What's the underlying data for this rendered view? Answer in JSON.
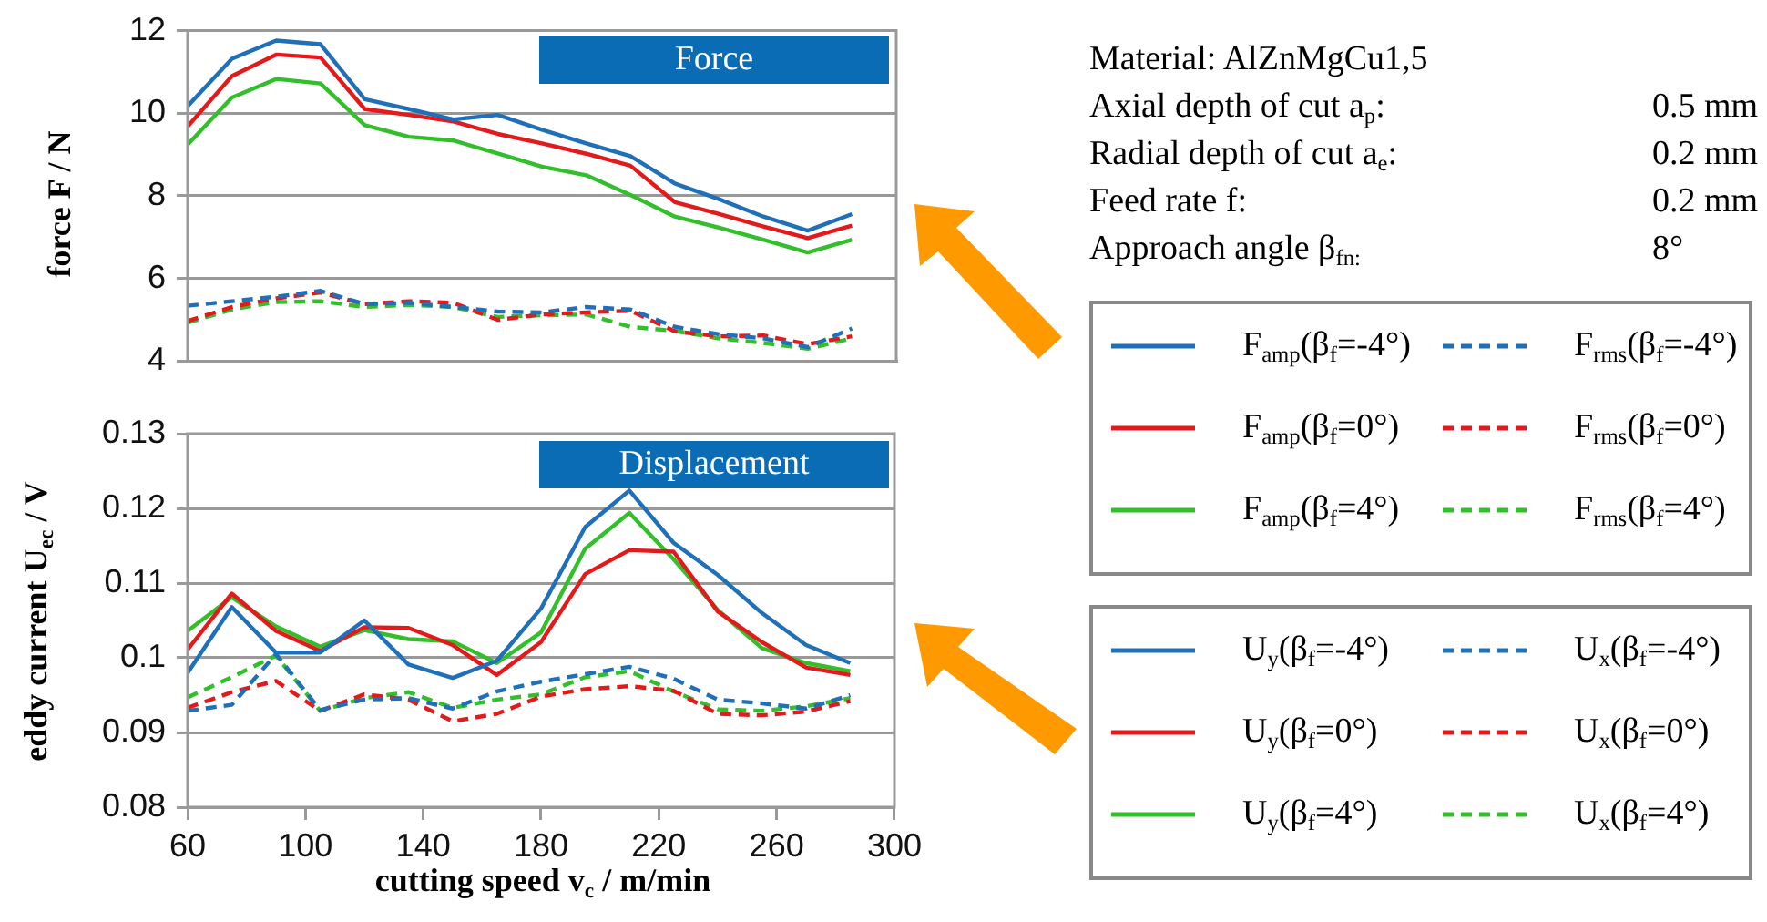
{
  "chart_data": [
    {
      "type": "line",
      "title": "Force",
      "ylabel": "force F / N",
      "x": [
        60,
        75,
        90,
        105,
        120,
        135,
        150,
        165,
        180,
        195,
        210,
        225,
        240,
        255,
        270,
        285
      ],
      "xlim": [
        60,
        300
      ],
      "xticks": [
        60,
        100,
        140,
        180,
        220,
        260,
        300
      ],
      "ylim": [
        4,
        12
      ],
      "yticks": [
        4,
        6,
        8,
        10,
        12
      ],
      "grid": "y",
      "legend": "right",
      "tick_labels": "y",
      "marker": "none",
      "annotations": [
        "Material: AlZnMgCu1,5",
        "Axial depth of cut a$_{p}$:",
        "0.5 mm",
        "Radial depth of cut a$_{e}$:",
        "0.2 mm",
        "Feed rate f:",
        "0.2 mm",
        "Approach angle β$_{fn:}$",
        "8°"
      ],
      "series": [
        {
          "name": "F$_{amp}$(β$_{f}$=-4°)",
          "color": "#1f70b8",
          "line_style": "solid",
          "values": [
            10.17,
            11.32,
            11.76,
            11.67,
            10.34,
            10.1,
            9.85,
            9.96,
            9.6,
            9.27,
            8.96,
            8.3,
            7.92,
            7.5,
            7.16,
            7.56
          ]
        },
        {
          "name": "F$_{amp}$(β$_{f}$=0°)",
          "color": "#e31a1c",
          "line_style": "solid",
          "values": [
            9.68,
            10.9,
            11.42,
            11.35,
            10.1,
            9.96,
            9.8,
            9.5,
            9.27,
            9.02,
            8.73,
            7.85,
            7.56,
            7.26,
            6.98,
            7.28
          ]
        },
        {
          "name": "F$_{amp}$(β$_{f}$=4°)",
          "color": "#33bf2b",
          "line_style": "solid",
          "values": [
            9.24,
            10.38,
            10.83,
            10.72,
            9.71,
            9.43,
            9.34,
            9.03,
            8.71,
            8.5,
            8.02,
            7.5,
            7.23,
            6.94,
            6.63,
            6.94
          ]
        },
        {
          "name": "F$_{rms}$(β$_{f}$=-4°)",
          "color": "#1f70b8",
          "line_style": "dashed",
          "values": [
            5.34,
            5.45,
            5.56,
            5.7,
            5.38,
            5.41,
            5.31,
            5.2,
            5.18,
            5.31,
            5.25,
            4.83,
            4.65,
            4.55,
            4.34,
            4.79
          ]
        },
        {
          "name": "F$_{rms}$(β$_{f}$=0°)",
          "color": "#e31a1c",
          "line_style": "dashed",
          "values": [
            4.97,
            5.31,
            5.52,
            5.66,
            5.38,
            5.45,
            5.41,
            5.0,
            5.13,
            5.18,
            5.22,
            4.72,
            4.6,
            4.62,
            4.41,
            4.6
          ]
        },
        {
          "name": "F$_{rms}$(β$_{f}$=4°)",
          "color": "#33bf2b",
          "line_style": "dashed",
          "values": [
            4.93,
            5.25,
            5.43,
            5.45,
            5.31,
            5.36,
            5.31,
            5.07,
            5.11,
            5.13,
            4.83,
            4.73,
            4.55,
            4.44,
            4.3,
            4.55
          ]
        }
      ]
    },
    {
      "type": "line",
      "title": "Displacement",
      "ylabel": "eddy current U$_{ec}$ / V",
      "xlabel": "cutting speed v$_{c}$ / m/min",
      "x": [
        60,
        75,
        90,
        105,
        120,
        135,
        150,
        165,
        180,
        195,
        210,
        225,
        240,
        255,
        270,
        285
      ],
      "xlim": [
        60,
        300
      ],
      "xticks": [
        60,
        100,
        140,
        180,
        220,
        260,
        300
      ],
      "ylim": [
        0.08,
        0.13
      ],
      "yticks": [
        0.08,
        0.09,
        0.1,
        0.11,
        0.12,
        0.13
      ],
      "grid": "y",
      "legend": "right",
      "marker": "none",
      "series": [
        {
          "name": "U$_{y}$(β$_{f}$=-4°)",
          "color": "#1f70b8",
          "line_style": "solid",
          "values": [
            0.098,
            0.1068,
            0.1007,
            0.1007,
            0.105,
            0.0991,
            0.0973,
            0.0996,
            0.1066,
            0.1175,
            0.1224,
            0.1154,
            0.1111,
            0.106,
            0.1017,
            0.0993
          ]
        },
        {
          "name": "U$_{y}$(β$_{f}$=0°)",
          "color": "#e31a1c",
          "line_style": "solid",
          "values": [
            0.1011,
            0.1086,
            0.1036,
            0.1009,
            0.1041,
            0.104,
            0.1017,
            0.0977,
            0.1021,
            0.1112,
            0.1144,
            0.1142,
            0.1062,
            0.1021,
            0.0987,
            0.0977
          ]
        },
        {
          "name": "U$_{y}$(β$_{f}$=4°)",
          "color": "#33bf2b",
          "line_style": "solid",
          "values": [
            0.1036,
            0.1081,
            0.1042,
            0.1015,
            0.1037,
            0.1025,
            0.1022,
            0.0993,
            0.1034,
            0.1146,
            0.1194,
            0.1132,
            0.1064,
            0.1013,
            0.0993,
            0.0982
          ]
        },
        {
          "name": "U$_{x}$(β$_{f}$=-4°)",
          "color": "#1f70b8",
          "line_style": "dashed",
          "values": [
            0.0929,
            0.0937,
            0.1005,
            0.093,
            0.0944,
            0.0946,
            0.0932,
            0.0955,
            0.0968,
            0.0978,
            0.0988,
            0.0972,
            0.0944,
            0.0939,
            0.0932,
            0.095
          ]
        },
        {
          "name": "U$_{x}$(β$_{f}$=0°)",
          "color": "#e31a1c",
          "line_style": "dashed",
          "values": [
            0.0933,
            0.0954,
            0.0969,
            0.0929,
            0.0951,
            0.0944,
            0.0915,
            0.0925,
            0.0948,
            0.0958,
            0.0962,
            0.0956,
            0.0925,
            0.0923,
            0.0928,
            0.0942
          ]
        },
        {
          "name": "U$_{x}$(β$_{f}$=4°)",
          "color": "#33bf2b",
          "line_style": "dashed",
          "values": [
            0.0947,
            0.0974,
            0.1003,
            0.0929,
            0.0946,
            0.0954,
            0.0933,
            0.0944,
            0.0951,
            0.0974,
            0.0982,
            0.0955,
            0.0931,
            0.0929,
            0.0935,
            0.0946
          ]
        }
      ]
    }
  ]
}
